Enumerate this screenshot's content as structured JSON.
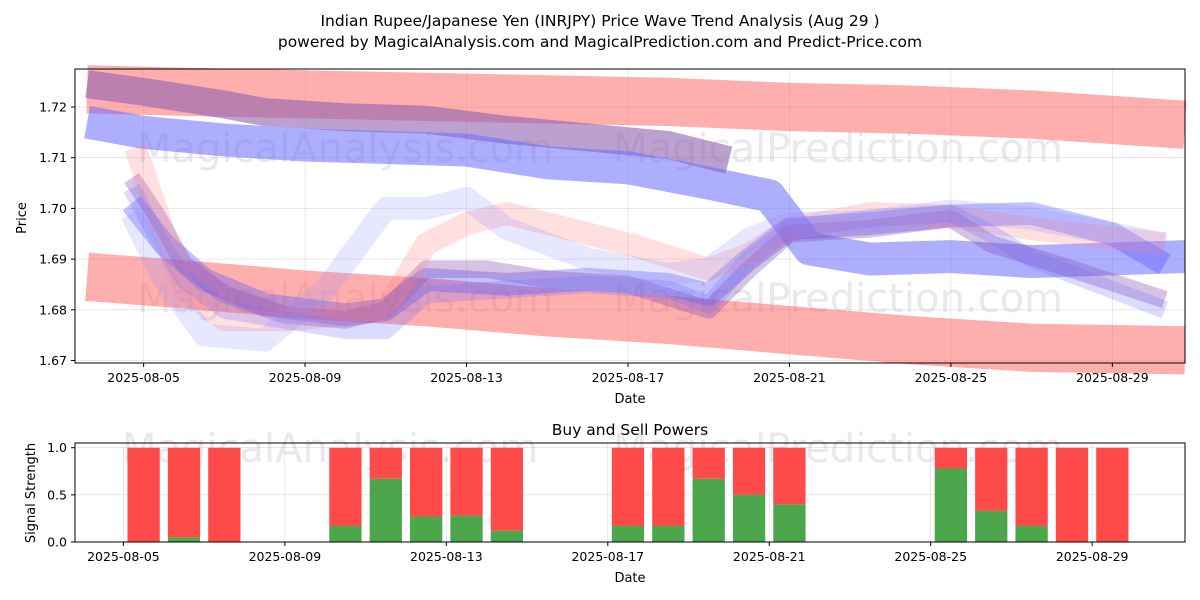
{
  "chart_data": [
    {
      "type": "area",
      "title_line1": "Indian Rupee/Japanese Yen (INRJPY) Price Wave Trend Analysis (Aug 29 )",
      "title_line2": "powered by MagicalAnalysis.com and MagicalPrediction.com and Predict-Price.com",
      "xlabel": "Date",
      "ylabel": "Price",
      "xlim_days": [
        3.3,
        30.8
      ],
      "ylim": [
        1.6695,
        1.7275
      ],
      "x_ticks": [
        {
          "day": 5,
          "label": "2025-08-05"
        },
        {
          "day": 9,
          "label": "2025-08-09"
        },
        {
          "day": 13,
          "label": "2025-08-13"
        },
        {
          "day": 17,
          "label": "2025-08-17"
        },
        {
          "day": 21,
          "label": "2025-08-21"
        },
        {
          "day": 25,
          "label": "2025-08-25"
        },
        {
          "day": 29,
          "label": "2025-08-29"
        }
      ],
      "y_ticks": [
        {
          "value": 1.67,
          "label": "1.67"
        },
        {
          "value": 1.68,
          "label": "1.68"
        },
        {
          "value": 1.69,
          "label": "1.69"
        },
        {
          "value": 1.7,
          "label": "1.70"
        },
        {
          "value": 1.71,
          "label": "1.71"
        },
        {
          "value": 1.72,
          "label": "1.72"
        }
      ],
      "watermarks": [
        "MagicalAnalysis.com",
        "MagicalPrediction.com"
      ],
      "series": [
        {
          "name": "red-upper-band",
          "color": "#ff6b6b",
          "opacity": 0.55,
          "width": 0.0095,
          "x": [
            3.6,
            6,
            9,
            12,
            15,
            18,
            21,
            24,
            27,
            30.8
          ],
          "y": [
            1.7235,
            1.723,
            1.7225,
            1.722,
            1.7215,
            1.721,
            1.72,
            1.7195,
            1.7185,
            1.7165
          ]
        },
        {
          "name": "red-lower-band",
          "color": "#ff6b6b",
          "opacity": 0.55,
          "width": 0.0095,
          "x": [
            3.6,
            6,
            9,
            12,
            15,
            18,
            21,
            24,
            27,
            30.8
          ],
          "y": [
            1.6865,
            1.685,
            1.683,
            1.6815,
            1.6795,
            1.678,
            1.676,
            1.674,
            1.6725,
            1.672
          ]
        },
        {
          "name": "purple-upper-band",
          "color": "#9060b0",
          "opacity": 0.6,
          "width": 0.0055,
          "x": [
            3.6,
            5,
            7,
            8,
            10,
            12,
            14,
            16,
            18,
            19.5
          ],
          "y": [
            1.7245,
            1.723,
            1.7205,
            1.719,
            1.718,
            1.7175,
            1.7155,
            1.714,
            1.7125,
            1.7095
          ]
        },
        {
          "name": "blue-upper-band",
          "color": "#6b6bff",
          "opacity": 0.55,
          "width": 0.0065,
          "x": [
            3.6,
            5,
            7,
            9,
            11,
            13,
            15,
            17,
            19,
            20.5,
            21.5,
            23,
            25,
            27,
            30.8
          ],
          "y": [
            1.717,
            1.715,
            1.7135,
            1.7125,
            1.712,
            1.7115,
            1.709,
            1.708,
            1.705,
            1.7025,
            1.692,
            1.69,
            1.6905,
            1.6895,
            1.6905
          ]
        },
        {
          "name": "blue-main",
          "color": "#5050ff",
          "opacity": 0.35,
          "width": 0.0045,
          "x": [
            4.7,
            5.5,
            6.5,
            8,
            10,
            11,
            12,
            14,
            16,
            18,
            19,
            20,
            21,
            23,
            25,
            27,
            29,
            30.3
          ],
          "y": [
            1.701,
            1.693,
            1.686,
            1.681,
            1.679,
            1.68,
            1.686,
            1.685,
            1.686,
            1.685,
            1.683,
            1.69,
            1.696,
            1.697,
            1.6985,
            1.699,
            1.695,
            1.689
          ]
        },
        {
          "name": "purple-mid",
          "color": "#8a50b0",
          "opacity": 0.35,
          "width": 0.0035,
          "x": [
            4.7,
            5.3,
            6,
            7,
            8.5,
            10,
            11,
            12,
            13.5,
            15,
            17,
            19,
            20,
            21,
            23,
            25,
            26,
            28,
            30.3
          ],
          "y": [
            1.706,
            1.699,
            1.689,
            1.683,
            1.679,
            1.678,
            1.68,
            1.688,
            1.688,
            1.686,
            1.685,
            1.68,
            1.688,
            1.695,
            1.696,
            1.698,
            1.693,
            1.688,
            1.682
          ]
        },
        {
          "name": "pink-wave",
          "color": "#ff8080",
          "opacity": 0.25,
          "width": 0.0045,
          "x": [
            4.8,
            5.3,
            6,
            7,
            8.5,
            10,
            11,
            12,
            13,
            14,
            15,
            17,
            19,
            20,
            21,
            23,
            25,
            27,
            30.3
          ],
          "y": [
            1.712,
            1.7,
            1.684,
            1.678,
            1.678,
            1.679,
            1.68,
            1.693,
            1.697,
            1.699,
            1.697,
            1.693,
            1.688,
            1.691,
            1.696,
            1.699,
            1.6985,
            1.696,
            1.693
          ]
        },
        {
          "name": "light-blue-wave",
          "color": "#9090ff",
          "opacity": 0.22,
          "width": 0.0045,
          "x": [
            4.7,
            5.5,
            6.5,
            8,
            9.5,
            11,
            12,
            13,
            14,
            16,
            18,
            19,
            20,
            21,
            23,
            25,
            27,
            30.3
          ],
          "y": [
            1.699,
            1.686,
            1.675,
            1.674,
            1.684,
            1.7,
            1.7,
            1.702,
            1.696,
            1.69,
            1.687,
            1.688,
            1.694,
            1.697,
            1.6975,
            1.6995,
            1.698,
            1.693
          ]
        },
        {
          "name": "blue-lower-wave",
          "color": "#7070ff",
          "opacity": 0.25,
          "width": 0.0035,
          "x": [
            4.7,
            5.3,
            6,
            7,
            8.5,
            10,
            11,
            12,
            14,
            16,
            18,
            19,
            20,
            21,
            23,
            25,
            26,
            27,
            30.3
          ],
          "y": [
            1.704,
            1.695,
            1.686,
            1.68,
            1.678,
            1.676,
            1.676,
            1.683,
            1.684,
            1.685,
            1.684,
            1.681,
            1.69,
            1.696,
            1.698,
            1.699,
            1.695,
            1.69,
            1.68
          ]
        }
      ]
    },
    {
      "type": "bar",
      "title": "Buy and Sell Powers",
      "xlabel": "Date",
      "ylabel": "Signal Strength",
      "xlim_days": [
        3.3,
        30.8
      ],
      "ylim": [
        0,
        1.05
      ],
      "x_ticks": [
        {
          "day": 4.5,
          "label": "2025-08-05"
        },
        {
          "day": 8.5,
          "label": "2025-08-09"
        },
        {
          "day": 12.5,
          "label": "2025-08-13"
        },
        {
          "day": 16.5,
          "label": "2025-08-17"
        },
        {
          "day": 20.5,
          "label": "2025-08-21"
        },
        {
          "day": 24.5,
          "label": "2025-08-25"
        },
        {
          "day": 28.5,
          "label": "2025-08-29"
        }
      ],
      "y_ticks": [
        {
          "value": 0.0,
          "label": "0.0"
        },
        {
          "value": 0.5,
          "label": "0.5"
        },
        {
          "value": 1.0,
          "label": "1.0"
        }
      ],
      "buy_color": "#4ca64c",
      "sell_color": "#ff4a4a",
      "watermarks": [
        "MagicalAnalysis.com",
        "MagicalPrediction.com"
      ],
      "bars": [
        {
          "day": 5,
          "buy": 0.0,
          "sell": 1.0
        },
        {
          "day": 6,
          "buy": 0.05,
          "sell": 0.95
        },
        {
          "day": 7,
          "buy": 0.0,
          "sell": 1.0
        },
        {
          "day": 10,
          "buy": 0.17,
          "sell": 0.83
        },
        {
          "day": 11,
          "buy": 0.67,
          "sell": 0.33
        },
        {
          "day": 12,
          "buy": 0.27,
          "sell": 0.73
        },
        {
          "day": 13,
          "buy": 0.28,
          "sell": 0.72
        },
        {
          "day": 14,
          "buy": 0.12,
          "sell": 0.88
        },
        {
          "day": 17,
          "buy": 0.17,
          "sell": 0.83
        },
        {
          "day": 18,
          "buy": 0.17,
          "sell": 0.83
        },
        {
          "day": 19,
          "buy": 0.67,
          "sell": 0.33
        },
        {
          "day": 20,
          "buy": 0.5,
          "sell": 0.5
        },
        {
          "day": 21,
          "buy": 0.4,
          "sell": 0.6
        },
        {
          "day": 25,
          "buy": 0.78,
          "sell": 0.22
        },
        {
          "day": 26,
          "buy": 0.33,
          "sell": 0.67
        },
        {
          "day": 27,
          "buy": 0.17,
          "sell": 0.83
        },
        {
          "day": 28,
          "buy": 0.0,
          "sell": 1.0
        },
        {
          "day": 29,
          "buy": 0.0,
          "sell": 1.0
        }
      ]
    }
  ]
}
